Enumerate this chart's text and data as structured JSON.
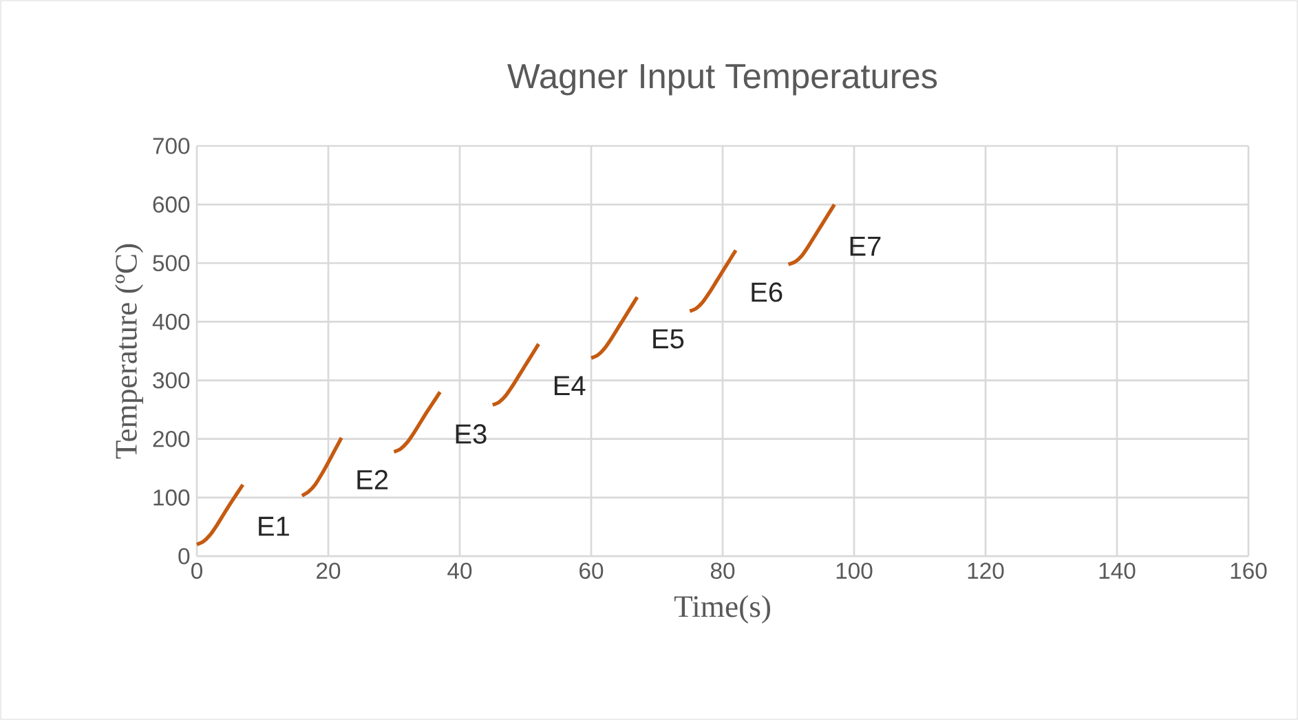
{
  "chart_data": {
    "type": "line",
    "title": "Wagner Input Temperatures",
    "xlabel": "Time(s)",
    "ylabel": "Temperature (ºC)",
    "xlim": [
      0,
      160
    ],
    "xticks": [
      0,
      20,
      40,
      60,
      80,
      100,
      120,
      140,
      160
    ],
    "ylim": [
      0,
      700
    ],
    "yticks": [
      0,
      100,
      200,
      300,
      400,
      500,
      600,
      700
    ],
    "grid": true,
    "legend": false,
    "marker": "none",
    "line_style": "solid",
    "series": [
      {
        "name": "E1",
        "color": "#c55a11",
        "x": [
          0,
          1,
          2,
          3,
          4,
          5,
          6,
          7
        ],
        "values": [
          20,
          25,
          36,
          52,
          70,
          88,
          105,
          122
        ]
      },
      {
        "name": "E2",
        "color": "#c55a11",
        "x": [
          16,
          17,
          18,
          19,
          20,
          21,
          22
        ],
        "values": [
          103,
          110,
          122,
          140,
          160,
          181,
          202
        ]
      },
      {
        "name": "E3",
        "color": "#c55a11",
        "x": [
          30,
          31,
          32,
          33,
          34,
          35,
          36,
          37
        ],
        "values": [
          178,
          183,
          194,
          210,
          228,
          246,
          263,
          280
        ]
      },
      {
        "name": "E4",
        "color": "#c55a11",
        "x": [
          45,
          46,
          47,
          48,
          49,
          50,
          51,
          52
        ],
        "values": [
          258,
          263,
          274,
          290,
          308,
          326,
          344,
          362
        ]
      },
      {
        "name": "E5",
        "color": "#c55a11",
        "x": [
          60,
          61,
          62,
          63,
          64,
          65,
          66,
          67
        ],
        "values": [
          338,
          343,
          354,
          370,
          388,
          406,
          424,
          442
        ]
      },
      {
        "name": "E6",
        "color": "#c55a11",
        "x": [
          75,
          76,
          77,
          78,
          79,
          80,
          81,
          82
        ],
        "values": [
          418,
          423,
          434,
          450,
          468,
          486,
          504,
          522
        ]
      },
      {
        "name": "E7",
        "color": "#c55a11",
        "x": [
          90,
          91,
          92,
          93,
          94,
          95,
          96,
          97
        ],
        "values": [
          498,
          502,
          512,
          528,
          546,
          564,
          582,
          600
        ]
      }
    ]
  }
}
